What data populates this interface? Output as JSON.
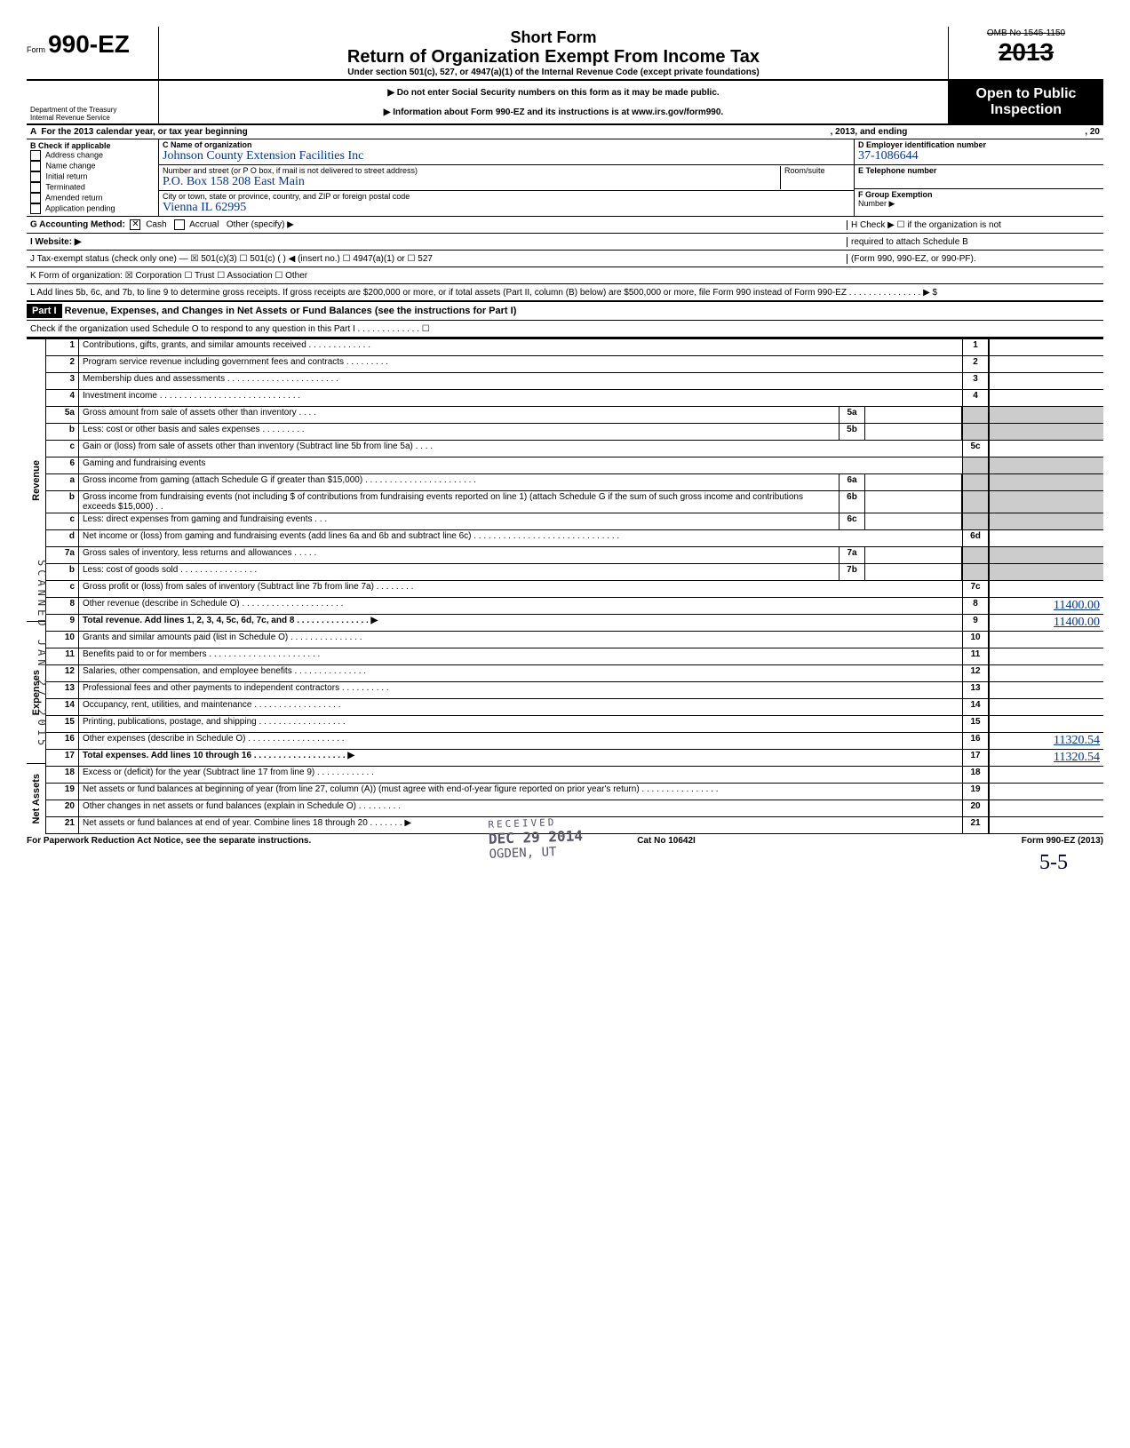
{
  "form": {
    "prefix": "Form",
    "number": "990-EZ",
    "title1": "Short Form",
    "title2": "Return of Organization Exempt From Income Tax",
    "title3": "Under section 501(c), 527, or 4947(a)(1) of the Internal Revenue Code (except private foundations)",
    "omb": "OMB No 1545-1150",
    "year": "2013",
    "dept1": "Department of the Treasury",
    "dept2": "Internal Revenue Service",
    "instr1": "▶ Do not enter Social Security numbers on this form as it may be made public.",
    "instr2": "▶ Information about Form 990-EZ and its instructions is at www.irs.gov/form990.",
    "open1": "Open to Public",
    "open2": "Inspection"
  },
  "rowA": {
    "left": "A  For the 2013 calendar year, or tax year beginning",
    "mid": ", 2013, and ending",
    "right": ", 20"
  },
  "B": {
    "hdr": "B  Check if applicable",
    "items": [
      "Address change",
      "Name change",
      "Initial return",
      "Terminated",
      "Amended return",
      "Application pending"
    ]
  },
  "C": {
    "hdr": "C  Name of organization",
    "name": "Johnson County Extension Facilities Inc",
    "street_lbl": "Number and street (or P O  box, if mail is not delivered to street address)",
    "street": "P.O. Box 158     208 East Main",
    "city_lbl": "City or town, state or province, country, and ZIP or foreign postal code",
    "city": "Vienna        IL      62995",
    "room_lbl": "Room/suite"
  },
  "D": {
    "hdr": "D Employer identification number",
    "val": "37-1086644"
  },
  "E": {
    "hdr": "E Telephone number"
  },
  "F": {
    "hdr": "F Group Exemption",
    "hdr2": "Number ▶"
  },
  "G": {
    "label": "G  Accounting Method:",
    "cash": "Cash",
    "accrual": "Accrual",
    "other": "Other (specify) ▶"
  },
  "I": "I   Website: ▶",
  "H": {
    "l1": "H  Check ▶ ☐ if the organization is not",
    "l2": "required to attach Schedule B",
    "l3": "(Form 990, 990-EZ, or 990-PF)."
  },
  "J": "J  Tax-exempt status (check only one) —  ☒ 501(c)(3)   ☐ 501(c) (        ) ◀ (insert no.) ☐ 4947(a)(1) or   ☐ 527",
  "K": "K  Form of organization:   ☒ Corporation     ☐ Trust          ☐ Association      ☐ Other",
  "L": "L  Add lines 5b, 6c, and 7b, to line 9 to determine gross receipts. If gross receipts are $200,000 or more, or if total assets (Part II, column (B) below) are $500,000 or more, file Form 990 instead of Form 990-EZ . . . . . . . . . . . . . . . ▶   $",
  "part1": {
    "hdr": "Part I",
    "title": "Revenue, Expenses, and Changes in Net Assets or Fund Balances (see the instructions for Part I)",
    "sub": "Check if the organization used Schedule O to respond to any question in this Part I . . . . . . . . . . . . . ☐"
  },
  "sideLabels": {
    "rev": "Revenue",
    "exp": "Expenses",
    "net": "Net Assets"
  },
  "lines": [
    {
      "n": "1",
      "d": "Contributions, gifts, grants, and similar amounts received . . . . . . . . . . . . .",
      "box": "1",
      "v": ""
    },
    {
      "n": "2",
      "d": "Program service revenue including government fees and contracts . . . . . . . . .",
      "box": "2",
      "v": ""
    },
    {
      "n": "3",
      "d": "Membership dues and assessments . . . . . . . . . . . . . . . . . . . . . . .",
      "box": "3",
      "v": ""
    },
    {
      "n": "4",
      "d": "Investment income . . . . . . . . . . . . . . . . . . . . . . . . . . . . .",
      "box": "4",
      "v": ""
    },
    {
      "n": "5a",
      "d": "Gross amount from sale of assets other than inventory . . . .",
      "mid": "5a"
    },
    {
      "n": "b",
      "d": "Less: cost or other basis and sales expenses . . . . . . . . .",
      "mid": "5b"
    },
    {
      "n": "c",
      "d": "Gain or (loss) from sale of assets other than inventory (Subtract line 5b from line 5a) . . . .",
      "box": "5c",
      "v": ""
    },
    {
      "n": "6",
      "d": "Gaming and fundraising events"
    },
    {
      "n": "a",
      "d": "Gross income from gaming (attach Schedule G if greater than $15,000) . . . . . . . . . . . . . . . . . . . . . . .",
      "mid": "6a"
    },
    {
      "n": "b",
      "d": "Gross income from fundraising events (not including  $                    of contributions from fundraising events reported on line 1) (attach Schedule G if the sum of such gross income and contributions exceeds $15,000) . .",
      "mid": "6b"
    },
    {
      "n": "c",
      "d": "Less: direct expenses from gaming and fundraising events  . . .",
      "mid": "6c"
    },
    {
      "n": "d",
      "d": "Net income or (loss) from gaming and fundraising events (add lines 6a and 6b and subtract line 6c) . . . . . . . . . . . . . . . . . . . . . . . . . . . . . .",
      "box": "6d",
      "v": ""
    },
    {
      "n": "7a",
      "d": "Gross sales of inventory, less returns and allowances . . . . .",
      "mid": "7a"
    },
    {
      "n": "b",
      "d": "Less: cost of goods sold  . . . . . . . . . . . . . . . .",
      "mid": "7b"
    },
    {
      "n": "c",
      "d": "Gross profit or (loss) from sales of inventory (Subtract line 7b from line 7a) . . . . . . . .",
      "box": "7c",
      "v": ""
    },
    {
      "n": "8",
      "d": "Other revenue (describe in Schedule O) . . . . . . . . . . . . . . . . . . . . .",
      "box": "8",
      "v": "11400.00"
    },
    {
      "n": "9",
      "d": "Total revenue. Add lines 1, 2, 3, 4, 5c, 6d, 7c, and 8 . . . . . . . . . . . . . . . ▶",
      "box": "9",
      "v": "11400.00",
      "bold": true
    },
    {
      "n": "10",
      "d": "Grants and similar amounts paid (list in Schedule O) . . . . . . . . . . . . . . .",
      "box": "10",
      "v": ""
    },
    {
      "n": "11",
      "d": "Benefits paid to or for members . . . . . . . . . . . . . . . . . . . . . . .",
      "box": "11",
      "v": ""
    },
    {
      "n": "12",
      "d": "Salaries, other compensation, and employee benefits . . . . . . . . . . . . . . .",
      "box": "12",
      "v": ""
    },
    {
      "n": "13",
      "d": "Professional fees and other payments to independent contractors . . . . . . . . . .",
      "box": "13",
      "v": ""
    },
    {
      "n": "14",
      "d": "Occupancy, rent, utilities, and maintenance . . . . . . . . . . . . . . . . . .",
      "box": "14",
      "v": ""
    },
    {
      "n": "15",
      "d": "Printing, publications, postage, and shipping . . . . . . . . . . . . . . . . . .",
      "box": "15",
      "v": ""
    },
    {
      "n": "16",
      "d": "Other expenses (describe in Schedule O) . . . . . . . . . . . . . . . . . . . .",
      "box": "16",
      "v": "11320.54"
    },
    {
      "n": "17",
      "d": "Total expenses. Add lines 10 through 16 . . . . . . . . . . . . . . . . . . . ▶",
      "box": "17",
      "v": "11320.54",
      "bold": true
    },
    {
      "n": "18",
      "d": "Excess or (deficit) for the year (Subtract line 17 from line 9)  . . . . . . . . . . . .",
      "box": "18",
      "v": ""
    },
    {
      "n": "19",
      "d": "Net assets or fund balances at beginning of year (from line 27, column (A)) (must agree with end-of-year figure reported on prior year's return) . . . . . . . . . . . . . . . .",
      "box": "19",
      "v": ""
    },
    {
      "n": "20",
      "d": "Other changes in net assets or fund balances (explain in Schedule O) . . . . . . . . .",
      "box": "20",
      "v": ""
    },
    {
      "n": "21",
      "d": "Net assets or fund balances at end of year. Combine lines 18 through 20 . . . . . . . ▶",
      "box": "21",
      "v": ""
    }
  ],
  "footer": {
    "left": "For Paperwork Reduction Act Notice, see the separate instructions.",
    "mid": "Cat  No  10642I",
    "right": "Form 990-EZ (2013)"
  },
  "stamp": {
    "l1": "RECEIVED",
    "l2": "DEC 29 2014",
    "l3": "OGDEN, UT"
  },
  "scan": "SCANNED JAN 27 2015",
  "sig": "5-5"
}
